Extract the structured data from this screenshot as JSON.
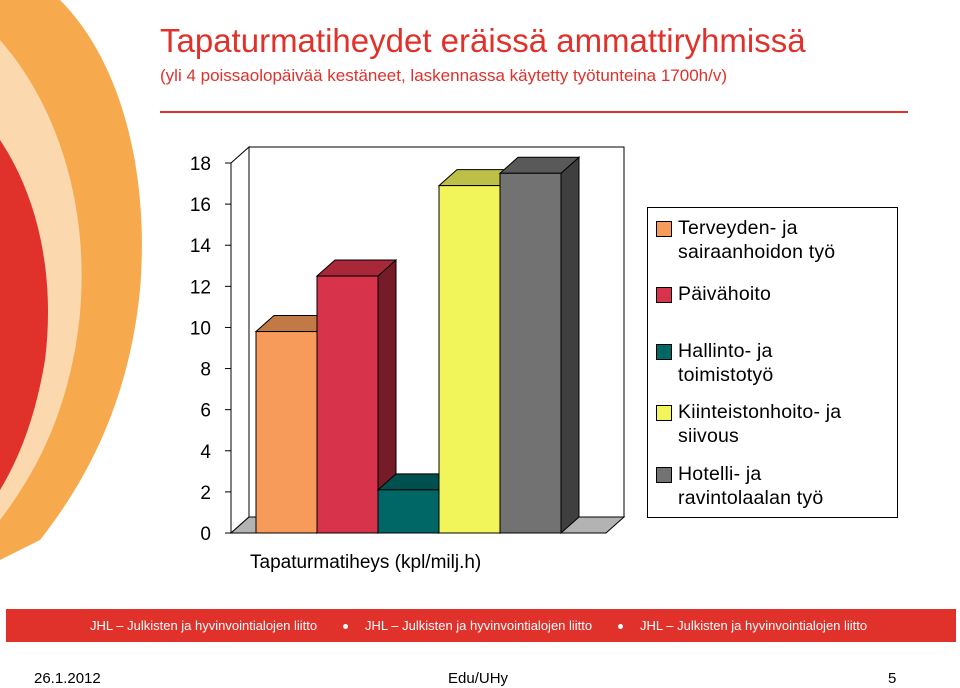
{
  "title": "Tapaturmatiheydet eräissä ammattiryhmissä",
  "subtitle": "(yli 4 poissaolopäivää kestäneet, laskennassa käytetty työtunteina 1700h/v)",
  "chart_data": {
    "type": "bar",
    "categories": [
      "Tapaturmatiheys (kpl/milj.h)"
    ],
    "xlabel": "Tapaturmatiheys (kpl/milj.h)",
    "ylabel": "",
    "ylim": [
      0,
      18
    ],
    "yticks": [
      "0",
      "2",
      "4",
      "6",
      "8",
      "10",
      "12",
      "14",
      "16",
      "18"
    ],
    "grid": false,
    "legend_position": "right",
    "series": [
      {
        "name": "Terveyden- ja sairaanhoidon työ",
        "values": [
          9.8
        ],
        "color": "#f79b5a"
      },
      {
        "name": "Päivähoito",
        "values": [
          12.5
        ],
        "color": "#d7334a"
      },
      {
        "name": "Hallinto- ja toimistotyö",
        "values": [
          2.1
        ],
        "color": "#006666"
      },
      {
        "name": "Kiinteistonhoito- ja siivous",
        "values": [
          16.9
        ],
        "color": "#f2f55a"
      },
      {
        "name": "Hotelli- ja ravintolaalan työ",
        "values": [
          17.5
        ],
        "color": "#727272"
      }
    ]
  },
  "legend": {
    "items": [
      {
        "lines": [
          "Terveyden- ja",
          "sairaanhoidon työ"
        ],
        "color": "#f79b5a"
      },
      {
        "lines": [
          "Päivähoito"
        ],
        "color": "#d7334a"
      },
      {
        "lines": [
          "Hallinto- ja",
          "toimistotyö"
        ],
        "color": "#006666"
      },
      {
        "lines": [
          "Kiinteistonhoito- ja",
          "siivous"
        ],
        "color": "#f2f55a"
      },
      {
        "lines": [
          "Hotelli- ja",
          "ravintolaalan työ"
        ],
        "color": "#727272"
      }
    ]
  },
  "footer": {
    "band_text": "JHL – Julkisten ja hyvinvointialojen liitto",
    "date": "26.1.2012",
    "author": "Edu/UHy",
    "page": "5"
  },
  "colors": {
    "accent": "#e0312b",
    "decor_orange": "#f5a03a",
    "decor_red": "#e0312b"
  }
}
